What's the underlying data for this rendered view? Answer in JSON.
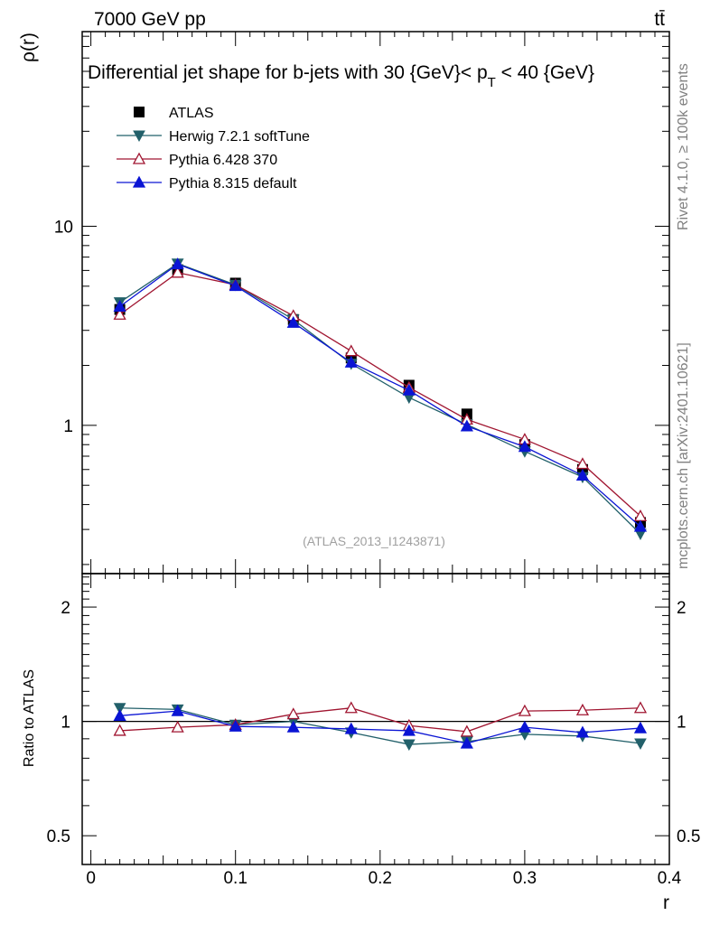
{
  "header": {
    "energy": "7000 GeV pp",
    "process": "tt̄",
    "title": "Differential jet shape for b-jets with 30 {GeV}< p",
    "title_sub": "T",
    "title_end": " < 40 {GeV}",
    "analysis_id": "(ATLAS_2013_I1243871)",
    "side_rivet": "Rivet 4.1.0, ≥ 100k events",
    "side_mcplots": "mcplots.cern.ch [arXiv:2401.10621]"
  },
  "chart_data": {
    "type": "line",
    "xlabel": "r",
    "ylabel": "ρ(r)",
    "ratio_ylabel": "Ratio to ATLAS",
    "xlim": [
      -0.006,
      0.4
    ],
    "ylim": [
      0.18,
      95
    ],
    "yscale": "log",
    "ratio_ylim": [
      0.42,
      2.45
    ],
    "ratio_yscale": "log",
    "x_ticks": [
      "0",
      "0.1",
      "0.2",
      "0.3",
      "0.4"
    ],
    "y_ticks": [
      "1",
      "10"
    ],
    "ratio_ticks": [
      "0.5",
      "1",
      "2"
    ],
    "x": [
      0.02,
      0.06,
      0.1,
      0.14,
      0.18,
      0.22,
      0.26,
      0.3,
      0.34,
      0.38
    ],
    "data": {
      "name": "ATLAS",
      "color": "#000000",
      "values": [
        3.82,
        6.05,
        5.18,
        3.4,
        2.18,
        1.59,
        1.14,
        0.8,
        0.6,
        0.325
      ]
    },
    "series": [
      {
        "name": "Herwig 7.2.1 softTune",
        "color": "#22606a",
        "marker": "triangle-down-filled",
        "values": [
          4.15,
          6.5,
          5.08,
          3.4,
          2.04,
          1.38,
          1.01,
          0.74,
          0.55,
          0.285
        ],
        "ratio": [
          1.085,
          1.075,
          0.98,
          1.0,
          0.935,
          0.87,
          0.885,
          0.925,
          0.915,
          0.875
        ]
      },
      {
        "name": "Pythia 6.428 370",
        "color": "#a01530",
        "marker": "triangle-up-open",
        "values": [
          3.6,
          5.85,
          5.08,
          3.55,
          2.36,
          1.55,
          1.07,
          0.85,
          0.64,
          0.35
        ],
        "ratio": [
          0.945,
          0.965,
          0.98,
          1.045,
          1.085,
          0.975,
          0.94,
          1.065,
          1.07,
          1.085
        ]
      },
      {
        "name": "Pythia 8.315 default",
        "color": "#0a14d4",
        "marker": "triangle-up-filled",
        "values": [
          3.95,
          6.45,
          5.02,
          3.28,
          2.07,
          1.5,
          0.99,
          0.78,
          0.56,
          0.31
        ],
        "ratio": [
          1.035,
          1.065,
          0.97,
          0.965,
          0.955,
          0.945,
          0.875,
          0.965,
          0.935,
          0.96
        ]
      }
    ]
  }
}
